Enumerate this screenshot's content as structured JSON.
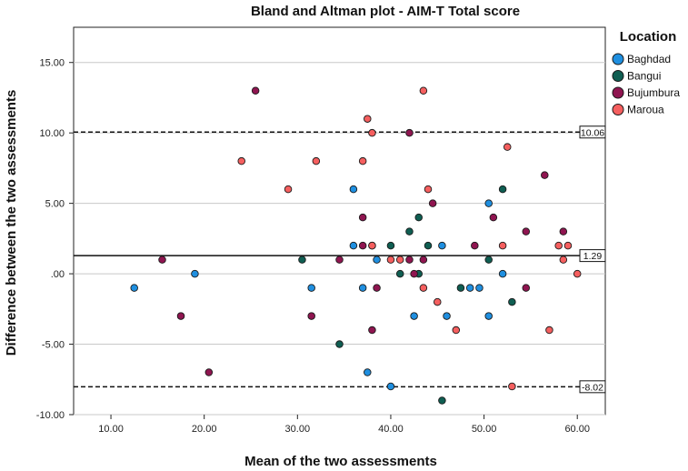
{
  "chart_data": {
    "type": "scatter",
    "title": "Bland and Altman plot - AIM-T Total score",
    "xlabel": "Mean of the two assessments",
    "ylabel": "Difference between the two assessments",
    "xlim": [
      6,
      63
    ],
    "ylim": [
      -10,
      17.5
    ],
    "x_ticks": [
      "10.00",
      "20.00",
      "30.00",
      "40.00",
      "50.00",
      "60.00"
    ],
    "x_tick_values": [
      10,
      20,
      30,
      40,
      50,
      60
    ],
    "y_ticks": [
      "-10.00",
      "-5.00",
      ".00",
      "5.00",
      "10.00",
      "15.00"
    ],
    "y_tick_values": [
      -10,
      -5,
      0,
      5,
      10,
      15
    ],
    "grid": "horizontal",
    "legend": {
      "title": "Location",
      "placement": "top-right"
    },
    "reference_lines": [
      {
        "value": 10.06,
        "label": "10.06",
        "style": "dashed"
      },
      {
        "value": 1.29,
        "label": "1.29",
        "style": "solid"
      },
      {
        "value": -8.02,
        "label": "-8.02",
        "style": "dashed"
      }
    ],
    "series": [
      {
        "name": "Baghdad",
        "color": "#1f8fe0",
        "points": [
          [
            12.5,
            -1
          ],
          [
            19,
            0
          ],
          [
            31.5,
            -1
          ],
          [
            36,
            6
          ],
          [
            36,
            2
          ],
          [
            37,
            -1
          ],
          [
            37.5,
            -7
          ],
          [
            38,
            2
          ],
          [
            38.5,
            1
          ],
          [
            40,
            -8
          ],
          [
            42.5,
            -3
          ],
          [
            45.5,
            2
          ],
          [
            46,
            -3
          ],
          [
            48.5,
            -1
          ],
          [
            49.5,
            -1
          ],
          [
            50.5,
            5
          ],
          [
            50.5,
            -3
          ],
          [
            52,
            0
          ]
        ]
      },
      {
        "name": "Bangui",
        "color": "#0f5e52",
        "points": [
          [
            30.5,
            1
          ],
          [
            34.5,
            -5
          ],
          [
            40,
            2
          ],
          [
            41,
            0
          ],
          [
            42,
            3
          ],
          [
            43,
            4
          ],
          [
            43,
            0
          ],
          [
            44,
            2
          ],
          [
            45.5,
            -9
          ],
          [
            47.5,
            -1
          ],
          [
            50.5,
            1
          ],
          [
            52,
            6
          ],
          [
            53,
            -2
          ]
        ]
      },
      {
        "name": "Bujumbura",
        "color": "#8f1550",
        "points": [
          [
            15.5,
            1
          ],
          [
            17.5,
            -3
          ],
          [
            20.5,
            -7
          ],
          [
            25.5,
            13
          ],
          [
            31.5,
            -3
          ],
          [
            34.5,
            1
          ],
          [
            37,
            4
          ],
          [
            37,
            2
          ],
          [
            38,
            -4
          ],
          [
            38.5,
            -1
          ],
          [
            42,
            1
          ],
          [
            42.5,
            0
          ],
          [
            42,
            10
          ],
          [
            43.5,
            1
          ],
          [
            44.5,
            5
          ],
          [
            49,
            2
          ],
          [
            51,
            4
          ],
          [
            54.5,
            3
          ],
          [
            54.5,
            -1
          ],
          [
            56.5,
            7
          ],
          [
            58.5,
            3
          ]
        ]
      },
      {
        "name": "Maroua",
        "color": "#f55f5f",
        "points": [
          [
            24,
            8
          ],
          [
            29,
            6
          ],
          [
            32,
            8
          ],
          [
            37,
            8
          ],
          [
            37.5,
            11
          ],
          [
            38,
            10
          ],
          [
            38,
            2
          ],
          [
            40,
            1
          ],
          [
            41,
            1
          ],
          [
            43.5,
            13
          ],
          [
            43.5,
            -1
          ],
          [
            44,
            6
          ],
          [
            45,
            -2
          ],
          [
            47,
            -4
          ],
          [
            52,
            2
          ],
          [
            52.5,
            9
          ],
          [
            53,
            -8
          ],
          [
            57,
            -4
          ],
          [
            58,
            2
          ],
          [
            58.5,
            1
          ],
          [
            59,
            2
          ],
          [
            60,
            0
          ]
        ]
      }
    ]
  }
}
